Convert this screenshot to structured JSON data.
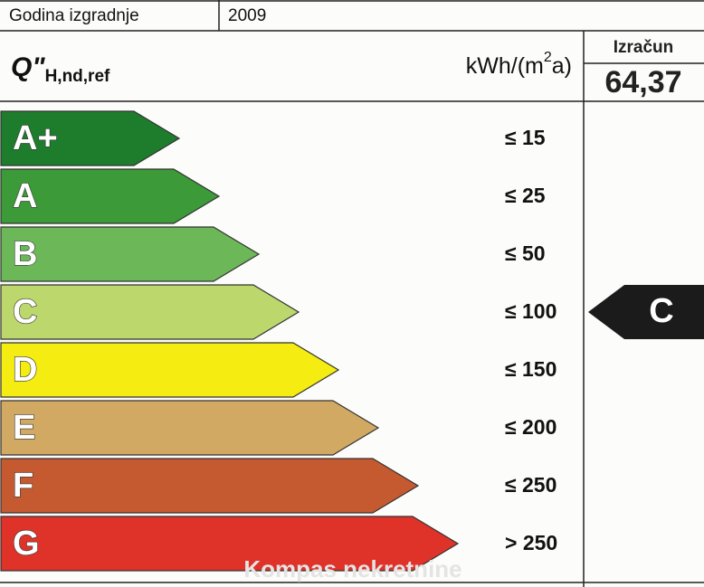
{
  "header": {
    "label": "Godina izgradnje",
    "value": "2009"
  },
  "quantity": {
    "symbol": "Q\"",
    "subscript": "H,nd,ref",
    "unit_before": "kWh/(m",
    "unit_sup": "2",
    "unit_after": "a)"
  },
  "result": {
    "label": "Izračun",
    "value": "64,37",
    "class": "C"
  },
  "classes": [
    {
      "label": "A+",
      "limit": "≤ 15"
    },
    {
      "label": "A",
      "limit": "≤ 25"
    },
    {
      "label": "B",
      "limit": "≤ 50"
    },
    {
      "label": "C",
      "limit": "≤ 100"
    },
    {
      "label": "D",
      "limit": "≤ 150"
    },
    {
      "label": "E",
      "limit": "≤ 200"
    },
    {
      "label": "F",
      "limit": "≤ 250"
    },
    {
      "label": "G",
      "limit": "> 250"
    }
  ],
  "watermark": "Kompas nekretnine"
}
